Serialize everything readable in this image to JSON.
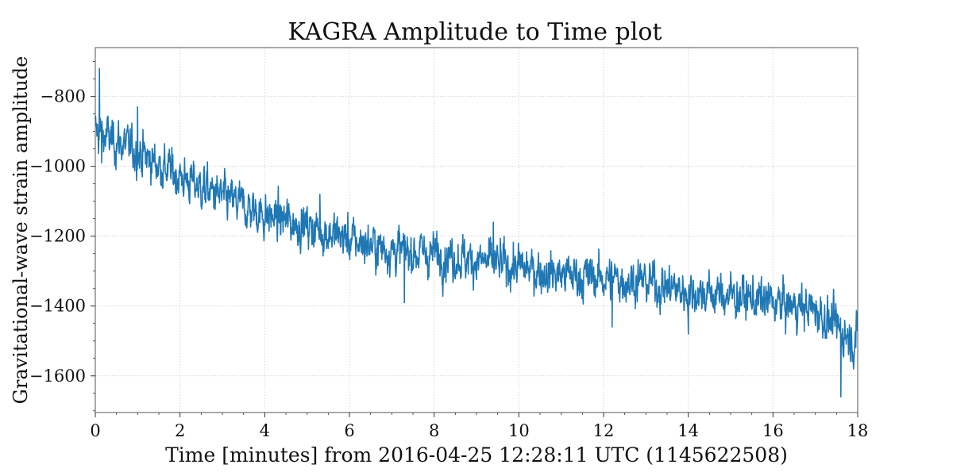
{
  "chart_data": {
    "type": "line",
    "title": "KAGRA Amplitude to Time plot",
    "xlabel": "Time [minutes] from 2016-04-25 12:28:11 UTC (1145622508)",
    "ylabel": "Gravitational-wave strain amplitude",
    "xlim": [
      0,
      18
    ],
    "ylim": [
      -1705,
      -660
    ],
    "x_ticks": [
      0,
      2,
      4,
      6,
      8,
      10,
      12,
      14,
      16,
      18
    ],
    "x_tick_labels": [
      "0",
      "2",
      "4",
      "6",
      "8",
      "10",
      "12",
      "14",
      "16",
      "18"
    ],
    "y_ticks": [
      -800,
      -1000,
      -1200,
      -1400,
      -1600
    ],
    "y_tick_labels": [
      "−800",
      "−1000",
      "−1200",
      "−1400",
      "−1600"
    ],
    "grid": true,
    "series": [
      {
        "color": "#1f77b4",
        "trend": [
          [
            0,
            -900
          ],
          [
            1,
            -960
          ],
          [
            2,
            -1030
          ],
          [
            3,
            -1090
          ],
          [
            4,
            -1140
          ],
          [
            5,
            -1170
          ],
          [
            6,
            -1210
          ],
          [
            7,
            -1240
          ],
          [
            8,
            -1250
          ],
          [
            9,
            -1270
          ],
          [
            10,
            -1290
          ],
          [
            11,
            -1310
          ],
          [
            12,
            -1320
          ],
          [
            13,
            -1330
          ],
          [
            14,
            -1360
          ],
          [
            15,
            -1370
          ],
          [
            16,
            -1390
          ],
          [
            17,
            -1410
          ],
          [
            17.5,
            -1460
          ],
          [
            18,
            -1500
          ]
        ],
        "noise_amplitude": 60,
        "extremes": [
          [
            0.1,
            -720
          ],
          [
            0.15,
            -990
          ],
          [
            1.0,
            -830
          ],
          [
            5.3,
            -1080
          ],
          [
            7.3,
            -1390
          ],
          [
            9.4,
            -1160
          ],
          [
            12.2,
            -1460
          ],
          [
            14.0,
            -1480
          ],
          [
            17.6,
            -1660
          ],
          [
            17.9,
            -1580
          ]
        ]
      }
    ]
  }
}
